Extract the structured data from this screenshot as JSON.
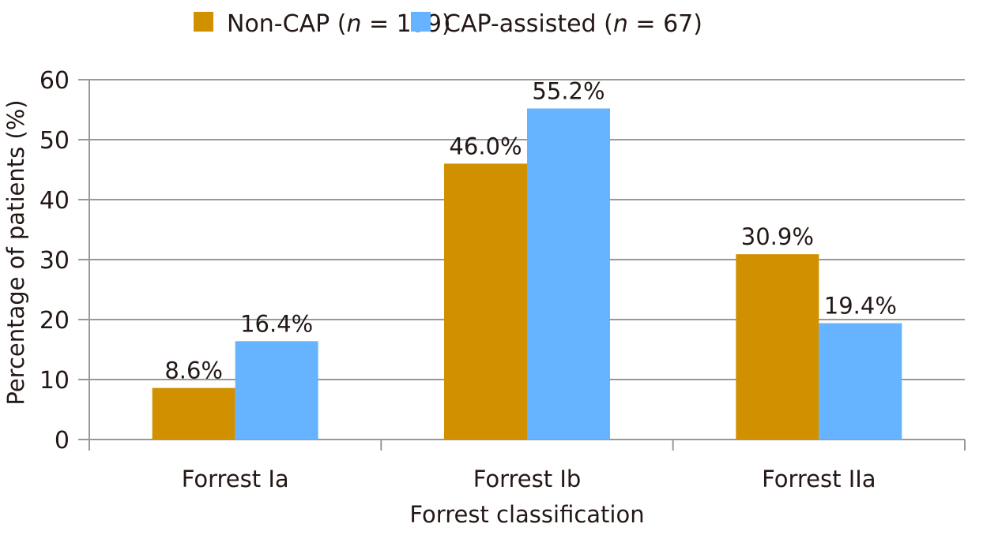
{
  "chart_data": {
    "type": "bar",
    "title": "",
    "xlabel": "Forrest classification",
    "ylabel": "Percentage of patients (%)",
    "ylim": [
      0,
      60
    ],
    "yticks": [
      "0",
      "10",
      "20",
      "30",
      "40",
      "50",
      "60"
    ],
    "grid": true,
    "legend_position": "top",
    "categories": [
      "Forrest Ia",
      "Forrest Ib",
      "Forrest IIa"
    ],
    "series": [
      {
        "name": "Non-CAP (n = 139)",
        "color": "#D09000",
        "values": [
          8.6,
          46.0,
          30.9
        ],
        "labels": [
          "8.6%",
          "46.0%",
          "30.9%"
        ]
      },
      {
        "name": "CAP-assisted (n = 67)",
        "color": "#66B3FF",
        "values": [
          16.4,
          55.2,
          19.4
        ],
        "labels": [
          "16.4%",
          "55.2%",
          "19.4%"
        ]
      }
    ]
  }
}
